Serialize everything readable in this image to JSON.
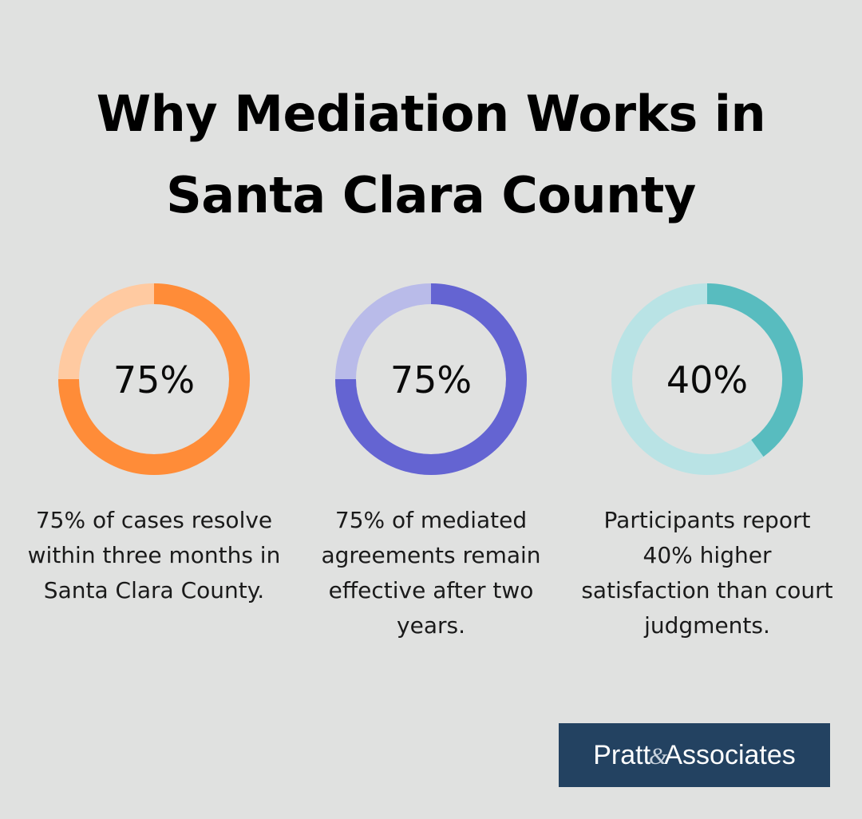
{
  "title": {
    "line1": "Why Mediation Works in",
    "line2": "Santa Clara County"
  },
  "stats": [
    {
      "percent_label": "75%",
      "value": 75,
      "description": "75% of cases resolve within three months in Santa Clara County.",
      "color": "#ff8c38",
      "track_color": "#ffcaa1"
    },
    {
      "percent_label": "75%",
      "value": 75,
      "description": "75% of mediated agreements remain effective after two years.",
      "color": "#6464d2",
      "track_color": "#b9bbe9"
    },
    {
      "percent_label": "40%",
      "value": 40,
      "description": "Participants report 40% higher satisfaction than court judgments.",
      "color": "#58bcbf",
      "track_color": "#b9e3e5"
    }
  ],
  "chart_data": {
    "type": "pie",
    "categories": [
      "75% of cases resolve within three months in Santa Clara County.",
      "75% of mediated agreements remain effective after two years.",
      "Participants report 40% higher satisfaction than court judgments."
    ],
    "values": [
      75,
      75,
      40
    ],
    "title": "Why Mediation Works in Santa Clara County"
  },
  "logo": {
    "text": "Pratt & Associates",
    "background": "#234261"
  }
}
